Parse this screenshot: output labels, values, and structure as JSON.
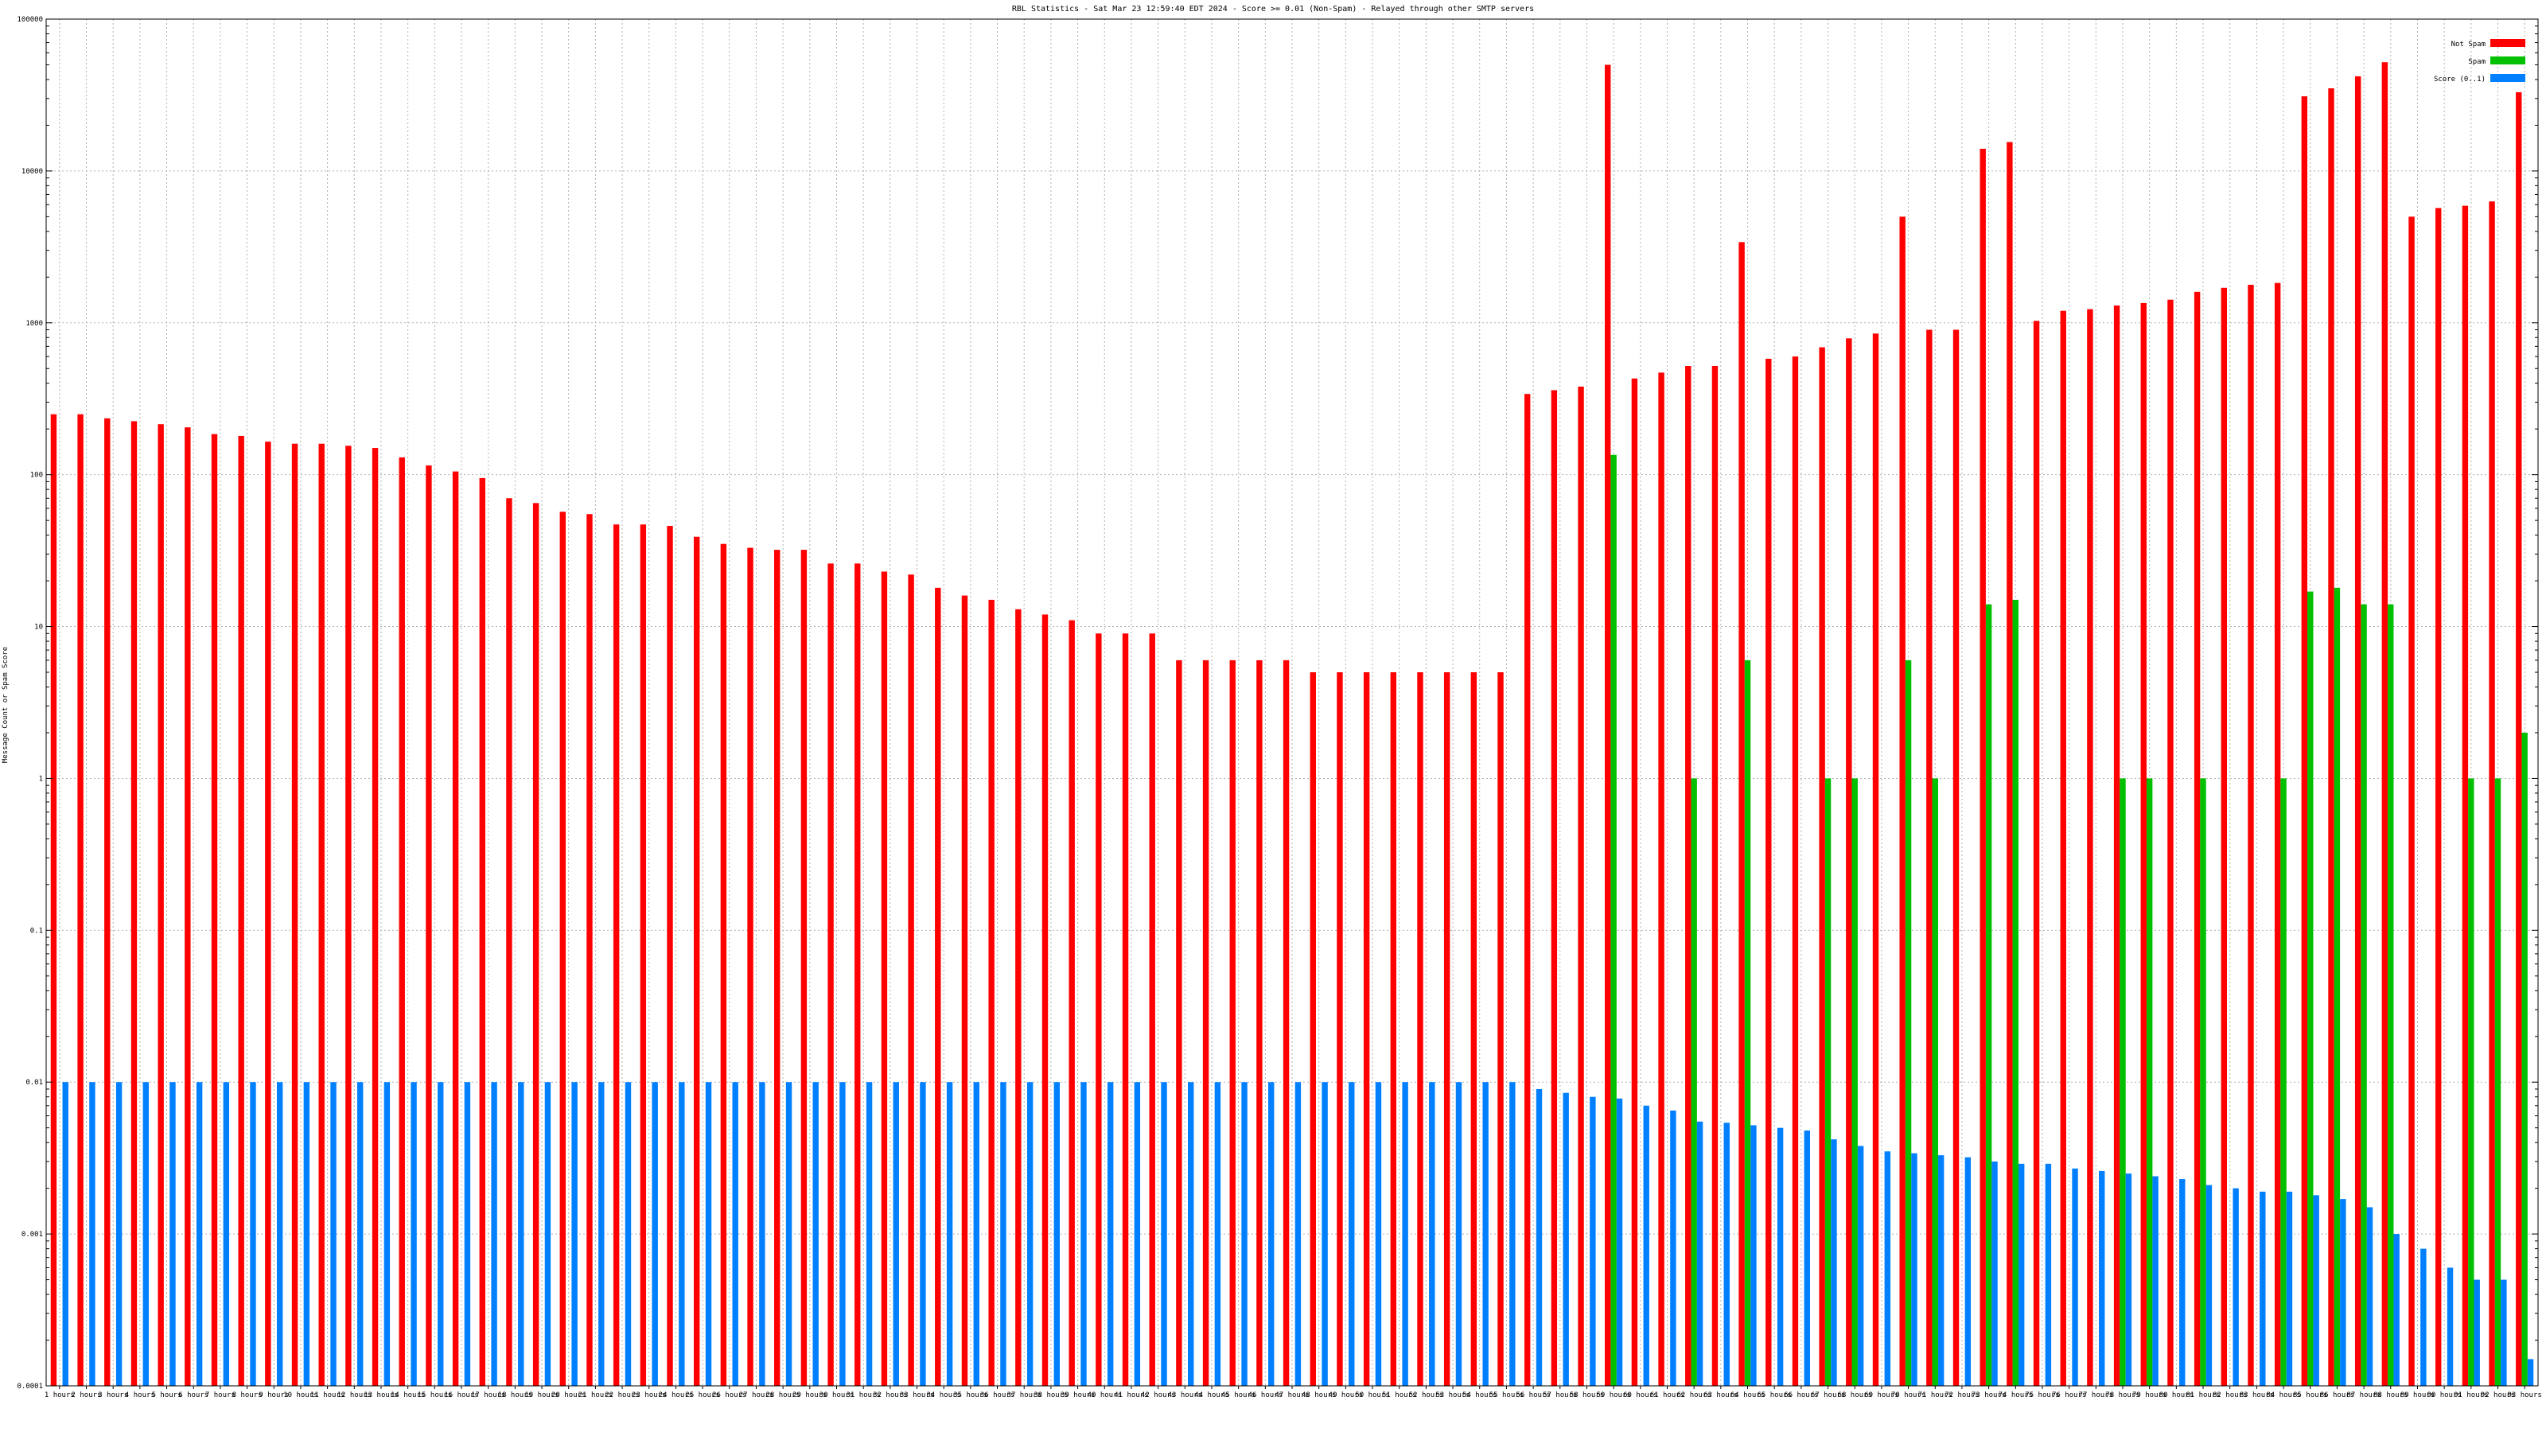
{
  "chart_data": {
    "type": "bar",
    "title": "RBL Statistics - Sat Mar 23 12:59:40 EDT 2024 - Score >= 0.01 (Non-Spam) - Relayed through other SMTP servers",
    "ylabel": "Message Count or Spam Score",
    "xlabel": "",
    "yscale": "log",
    "ylim": [
      0.0001,
      100000
    ],
    "yticks": [
      "100000",
      "10000",
      "1000",
      "100",
      "10",
      "1",
      "0.1",
      "0.01",
      "0.001",
      "0.0001"
    ],
    "grid": true,
    "legend_position": "top-right",
    "colors": {
      "not_spam": "#ff0000",
      "spam": "#00c000",
      "score": "#0080ff"
    },
    "series": [
      {
        "name": "Not Spam",
        "key": "not_spam"
      },
      {
        "name": "Spam",
        "key": "spam"
      },
      {
        "name": "Score (0..1)",
        "key": "score"
      }
    ],
    "categories": [
      "1 hours",
      "2 hours",
      "3 hours",
      "4 hours",
      "5 hours",
      "6 hours",
      "7 hours",
      "8 hours",
      "9 hours",
      "10 hours",
      "11 hours",
      "12 hours",
      "13 hours",
      "14 hours",
      "15 hours",
      "16 hours",
      "17 hours",
      "18 hours",
      "19 hours",
      "20 hours",
      "21 hours",
      "22 hours",
      "23 hours",
      "24 hours",
      "25 hours",
      "26 hours",
      "27 hours",
      "28 hours",
      "29 hours",
      "30 hours",
      "31 hours",
      "32 hours",
      "33 hours",
      "34 hours",
      "35 hours",
      "36 hours",
      "37 hours",
      "38 hours",
      "39 hours",
      "40 hours",
      "41 hours",
      "42 hours",
      "43 hours",
      "44 hours",
      "45 hours",
      "46 hours",
      "47 hours",
      "48 hours",
      "49 hours",
      "50 hours",
      "51 hours",
      "52 hours",
      "53 hours",
      "54 hours",
      "55 hours",
      "56 hours",
      "57 hours",
      "58 hours",
      "59 hours",
      "60 hours",
      "61 hours",
      "62 hours",
      "63 hours",
      "64 hours",
      "65 hours",
      "66 hours",
      "67 hours",
      "68 hours",
      "69 hours",
      "70 hours",
      "71 hours",
      "72 hours",
      "73 hours",
      "74 hours",
      "75 hours",
      "76 hours",
      "77 hours",
      "78 hours",
      "79 hours",
      "80 hours",
      "81 hours",
      "82 hours",
      "83 hours",
      "84 hours",
      "85 hours",
      "86 hours",
      "87 hours",
      "88 hours",
      "89 hours",
      "90 hours",
      "91 hours",
      "92 hours",
      "93 hours"
    ],
    "not_spam": [
      250,
      250,
      235,
      225,
      215,
      205,
      185,
      180,
      165,
      160,
      160,
      155,
      150,
      130,
      115,
      105,
      95,
      70,
      65,
      57,
      55,
      47,
      47,
      46,
      39,
      35,
      33,
      32,
      32,
      26,
      26,
      23,
      22,
      18,
      16,
      15,
      13,
      12,
      11,
      9,
      9,
      9,
      6,
      6,
      6,
      6,
      6,
      5,
      5,
      5,
      5,
      5,
      5,
      5,
      5,
      340,
      360,
      380,
      50000,
      430,
      470,
      520,
      520,
      3400,
      580,
      600,
      690,
      790,
      850,
      5000,
      900,
      900,
      14000,
      15500,
      1030,
      1200,
      1230,
      1300,
      1350,
      1420,
      1600,
      1700,
      1780,
      1830,
      31000,
      35000,
      42000,
      52000,
      5000,
      5700,
      5900,
      6300,
      33000
    ],
    "spam": [
      0,
      0,
      0,
      0,
      0,
      0,
      0,
      0,
      0,
      0,
      0,
      0,
      0,
      0,
      0,
      0,
      0,
      0,
      0,
      0,
      0,
      0,
      0,
      0,
      0,
      0,
      0,
      0,
      0,
      0,
      0,
      0,
      0,
      0,
      0,
      0,
      0,
      0,
      0,
      0,
      0,
      0,
      0,
      0,
      0,
      0,
      0,
      0,
      0,
      0,
      0,
      0,
      0,
      0,
      0,
      0,
      0,
      0,
      135,
      0,
      0,
      1,
      0,
      6,
      0,
      0,
      1,
      1,
      0,
      6,
      1,
      0,
      14,
      15,
      0,
      0,
      0,
      1,
      1,
      0,
      1,
      0,
      0,
      1,
      17,
      18,
      14,
      14,
      0,
      0,
      1,
      1,
      2
    ],
    "score": [
      0.01,
      0.01,
      0.01,
      0.01,
      0.01,
      0.01,
      0.01,
      0.01,
      0.01,
      0.01,
      0.01,
      0.01,
      0.01,
      0.01,
      0.01,
      0.01,
      0.01,
      0.01,
      0.01,
      0.01,
      0.01,
      0.01,
      0.01,
      0.01,
      0.01,
      0.01,
      0.01,
      0.01,
      0.01,
      0.01,
      0.01,
      0.01,
      0.01,
      0.01,
      0.01,
      0.01,
      0.01,
      0.01,
      0.01,
      0.01,
      0.01,
      0.01,
      0.01,
      0.01,
      0.01,
      0.01,
      0.01,
      0.01,
      0.01,
      0.01,
      0.01,
      0.01,
      0.01,
      0.01,
      0.01,
      0.009,
      0.0085,
      0.008,
      0.0078,
      0.007,
      0.0065,
      0.0055,
      0.0054,
      0.0052,
      0.005,
      0.0048,
      0.0042,
      0.0038,
      0.0035,
      0.0034,
      0.0033,
      0.0032,
      0.003,
      0.0029,
      0.0029,
      0.0027,
      0.0026,
      0.0025,
      0.0024,
      0.0023,
      0.0021,
      0.002,
      0.0019,
      0.0019,
      0.0018,
      0.0017,
      0.0015,
      0.001,
      0.0008,
      0.0006,
      0.0005,
      0.0005,
      0.00015
    ]
  }
}
